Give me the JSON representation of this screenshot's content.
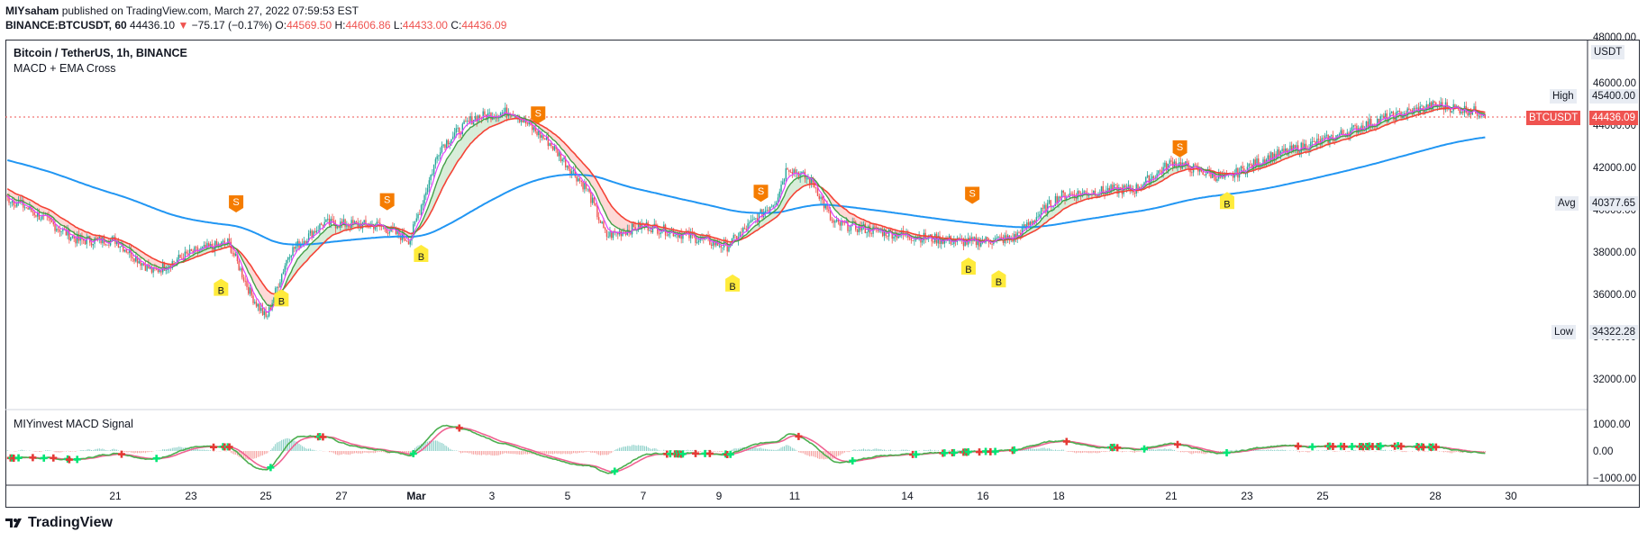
{
  "header": {
    "user": "MIYsaham",
    "published": " published on TradingView.com, March 27, 2022 07:59:53 EST",
    "symbol": "BINANCE:BTCUSDT, 60",
    "price": "44436.10",
    "change_arrow": "▼",
    "change": "−75.17 (−0.17%)",
    "o_label": "O:",
    "o_value": "44569.50",
    "h_label": "H:",
    "h_value": "44606.86",
    "l_label": "L:",
    "l_value": "44433.00",
    "c_label": "C:",
    "c_value": "44436.09"
  },
  "legend": {
    "title": "Bitcoin / TetherUS, 1h, BINANCE",
    "indicator": "MACD + EMA Cross",
    "macd_title": "MIYinvest MACD Signal"
  },
  "price_axis": {
    "ticks": [
      "48000.00",
      "46000.00",
      "44000.00",
      "42000.00",
      "40000.00",
      "38000.00",
      "36000.00",
      "34000.00",
      "32000.00"
    ],
    "currency": "USDT",
    "high_label": "High",
    "high_value": "45400.00",
    "symbol_label": "BTCUSDT",
    "symbol_value": "44436.09",
    "avg_label": "Avg",
    "avg_value": "40377.65",
    "low_label": "Low",
    "low_value": "34322.28"
  },
  "macd_axis": {
    "ticks": [
      "1000.00",
      "0.00",
      "−1000.00"
    ]
  },
  "time_axis": [
    "21",
    "23",
    "25",
    "27",
    "Mar",
    "3",
    "5",
    "7",
    "9",
    "11",
    "14",
    "16",
    "18",
    "21",
    "23",
    "25",
    "28",
    "30"
  ],
  "signals": [
    {
      "type": "S",
      "day": 24.2,
      "price": 40300
    },
    {
      "type": "B",
      "day": 23.8,
      "price": 36400
    },
    {
      "type": "B",
      "day": 25.4,
      "price": 35900
    },
    {
      "type": "S",
      "day": 28.2,
      "price": 40400
    },
    {
      "type": "B",
      "day": 29.1,
      "price": 38000
    },
    {
      "type": "S",
      "day": 32.2,
      "price": 44500
    },
    {
      "type": "B",
      "day": 37.35,
      "price": 36600
    },
    {
      "type": "S",
      "day": 38.1,
      "price": 40800
    },
    {
      "type": "B",
      "day": 43.6,
      "price": 37400
    },
    {
      "type": "S",
      "day": 43.7,
      "price": 40700
    },
    {
      "type": "B",
      "day": 44.4,
      "price": 36800
    },
    {
      "type": "S",
      "day": 49.2,
      "price": 42900
    },
    {
      "type": "B",
      "day": 50.45,
      "price": 40500
    }
  ],
  "colors": {
    "up": "#26a69a",
    "down": "#ef5350",
    "ema_long": "#2196f3",
    "ema_fast": "#e040fb",
    "ema_slow": "#f44336",
    "sell": "#f57c00",
    "buy": "#ffeb3b"
  },
  "brand": "TradingView"
}
